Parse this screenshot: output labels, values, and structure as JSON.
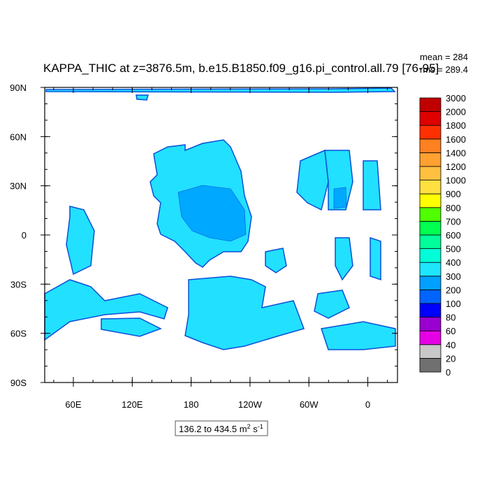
{
  "header": {
    "title": "KAPPA_THIC at z=3876.5m, b.e15.B1850.f09_g16.pi_control.all.79 [76-95]",
    "mean": "mean = 284",
    "rms": "rms = 289.4"
  },
  "map": {
    "lat_labels": [
      "90N",
      "60N",
      "30N",
      "0",
      "30S",
      "60S",
      "90S"
    ],
    "lon_labels": [
      "60E",
      "120E",
      "180",
      "120W",
      "60W",
      "0"
    ]
  },
  "colorbar": {
    "labels": [
      "0",
      "20",
      "40",
      "60",
      "80",
      "100",
      "200",
      "300",
      "400",
      "500",
      "600",
      "700",
      "800",
      "900",
      "1000",
      "1200",
      "1400",
      "1600",
      "1800",
      "2000",
      "3000"
    ],
    "colors": [
      "#707070",
      "#c8c8c8",
      "#e600e6",
      "#9a00d0",
      "#0000ff",
      "#0064ff",
      "#00a0ff",
      "#1ee6ff",
      "#00ffd8",
      "#00ff9a",
      "#00ff50",
      "#50ff00",
      "#ffff00",
      "#ffe040",
      "#ffc040",
      "#ffa030",
      "#ff8020",
      "#ff3000",
      "#e00000",
      "#c00000"
    ]
  },
  "range_label": {
    "text": "136.2 to 434.5 m",
    "sup1": "2",
    "mid": " s",
    "sup2": "-1"
  }
}
